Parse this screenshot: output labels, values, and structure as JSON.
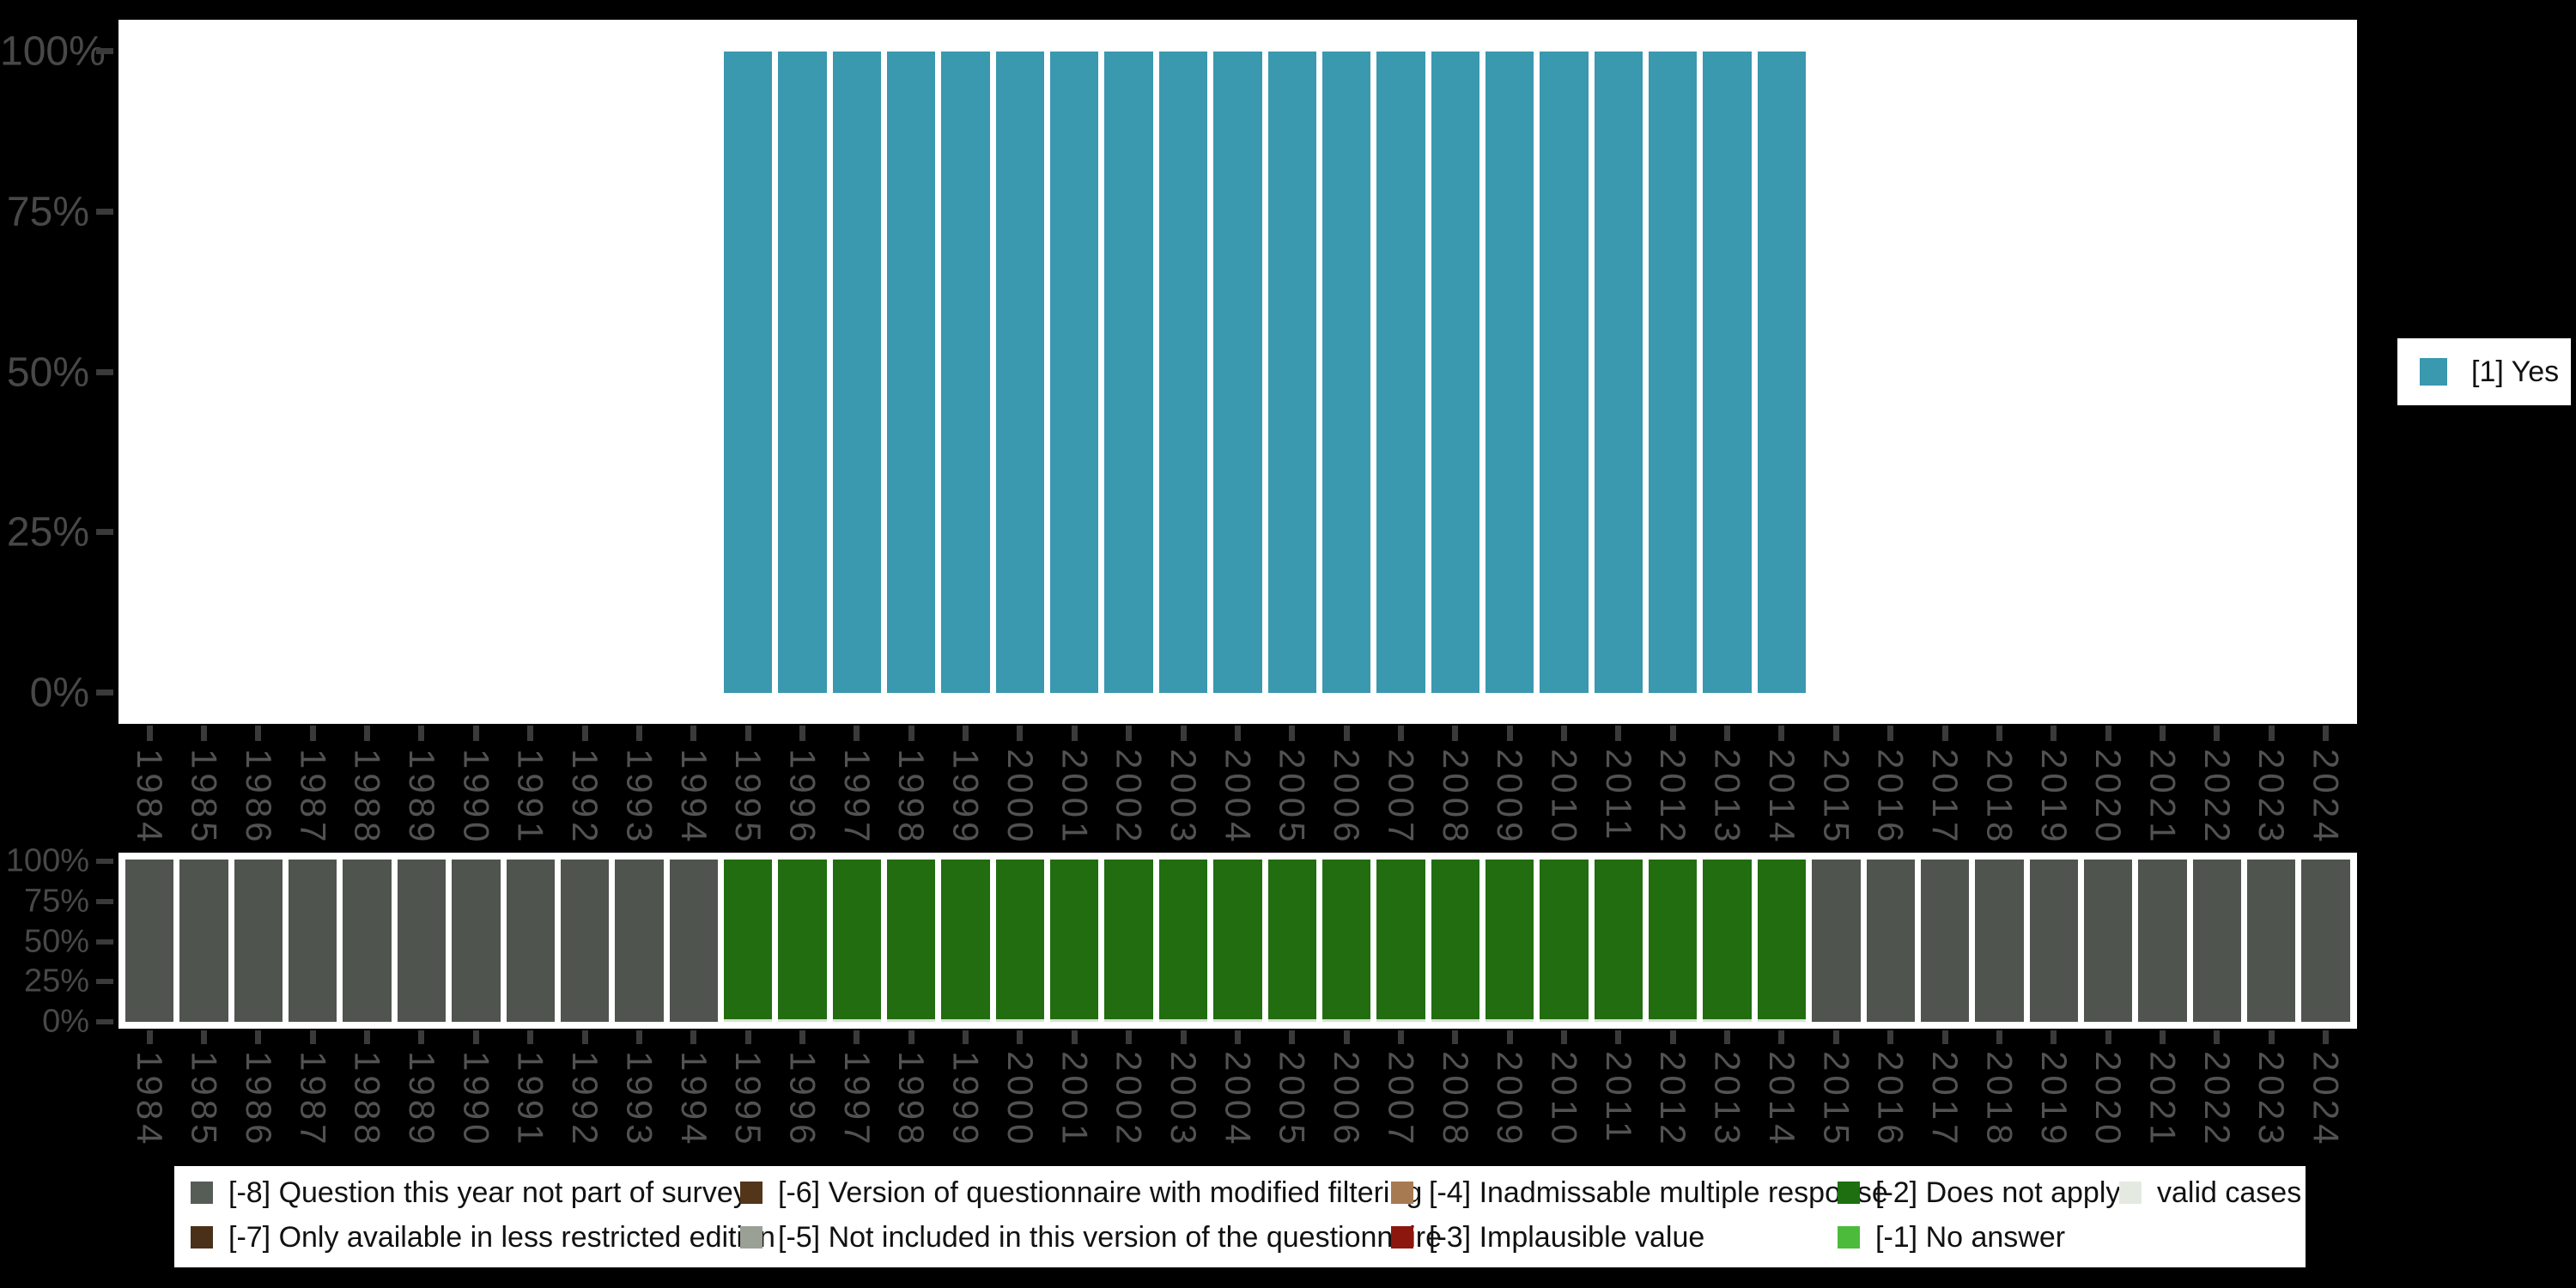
{
  "colors": {
    "background": "#000000",
    "panel": "#ffffff",
    "bar_yes": "#3a98af",
    "bar_not_surveyed": "#4f544e",
    "bar_does_not_apply": "#216d10",
    "valid_sliver": "#d7e2d1",
    "axis_text": "#4e4e4e",
    "tick": "#3a3a3a"
  },
  "top_chart": {
    "y_tick_labels": [
      "100%",
      "75%",
      "50%",
      "25%",
      "0%"
    ],
    "legend": {
      "label": "[1] Yes",
      "swatch_color": "#3a98af"
    }
  },
  "bottom_chart": {
    "y_tick_labels": [
      "100%",
      "75%",
      "50%",
      "25%",
      "0%"
    ]
  },
  "missing_legend": {
    "rows": [
      [
        {
          "label": "[-8] Question this year not part of survey",
          "color": "#565d56"
        },
        {
          "label": "[-6] Version of questionnaire with modified filtering",
          "color": "#53351a"
        },
        {
          "label": "[-4] Inadmissable multiple response",
          "color": "#a87a52"
        },
        {
          "label": "[-2] Does not apply",
          "color": "#1d6f10"
        },
        {
          "label": "valid cases",
          "color": "#e4eae1"
        }
      ],
      [
        {
          "label": "[-7] Only available in less restricted edition",
          "color": "#4a3018"
        },
        {
          "label": "[-5] Not included in this version of the questionnaire",
          "color": "#9aa096"
        },
        {
          "label": "[-3] Implausible value",
          "color": "#8c170e"
        },
        {
          "label": "[-1] No answer",
          "color": "#4cbb3c"
        }
      ]
    ]
  },
  "chart_data": [
    {
      "type": "bar",
      "title": "",
      "xlabel": "",
      "ylabel": "",
      "ylim": [
        0,
        100
      ],
      "y_tick_labels": [
        "0%",
        "25%",
        "50%",
        "75%",
        "100%"
      ],
      "grid": false,
      "legend_position": "right",
      "categories": [
        1984,
        1985,
        1986,
        1987,
        1988,
        1989,
        1990,
        1991,
        1992,
        1993,
        1994,
        1995,
        1996,
        1997,
        1998,
        1999,
        2000,
        2001,
        2002,
        2003,
        2004,
        2005,
        2006,
        2007,
        2008,
        2009,
        2010,
        2011,
        2012,
        2013,
        2014,
        2015,
        2016,
        2017,
        2018,
        2019,
        2020,
        2021,
        2022,
        2023,
        2024
      ],
      "series": [
        {
          "name": "[1] Yes",
          "color": "#3a98af",
          "values": [
            null,
            null,
            null,
            null,
            null,
            null,
            null,
            null,
            null,
            null,
            null,
            100,
            100,
            100,
            100,
            100,
            100,
            100,
            100,
            100,
            100,
            100,
            100,
            100,
            100,
            100,
            100,
            100,
            100,
            100,
            100,
            null,
            null,
            null,
            null,
            null,
            null,
            null,
            null,
            null,
            null
          ]
        }
      ]
    },
    {
      "type": "bar",
      "stacked": true,
      "title": "",
      "xlabel": "",
      "ylabel": "",
      "ylim": [
        0,
        100
      ],
      "y_tick_labels": [
        "0%",
        "25%",
        "50%",
        "75%",
        "100%"
      ],
      "grid": false,
      "legend_position": "bottom",
      "categories": [
        1984,
        1985,
        1986,
        1987,
        1988,
        1989,
        1990,
        1991,
        1992,
        1993,
        1994,
        1995,
        1996,
        1997,
        1998,
        1999,
        2000,
        2001,
        2002,
        2003,
        2004,
        2005,
        2006,
        2007,
        2008,
        2009,
        2010,
        2011,
        2012,
        2013,
        2014,
        2015,
        2016,
        2017,
        2018,
        2019,
        2020,
        2021,
        2022,
        2023,
        2024
      ],
      "series": [
        {
          "name": "[-8] Question this year not part of survey",
          "color": "#565d56",
          "values": [
            100,
            100,
            100,
            100,
            100,
            100,
            100,
            100,
            100,
            100,
            100,
            0,
            0,
            0,
            0,
            0,
            0,
            0,
            0,
            0,
            0,
            0,
            0,
            0,
            0,
            0,
            0,
            0,
            0,
            0,
            0,
            100,
            100,
            100,
            100,
            100,
            100,
            100,
            100,
            100,
            100
          ]
        },
        {
          "name": "[-2] Does not apply",
          "color": "#216d10",
          "values": [
            0,
            0,
            0,
            0,
            0,
            0,
            0,
            0,
            0,
            0,
            0,
            99,
            99,
            99,
            99,
            99,
            99,
            99,
            99,
            99,
            99,
            99,
            99,
            99,
            99,
            99,
            99,
            99,
            99,
            99,
            99,
            0,
            0,
            0,
            0,
            0,
            0,
            0,
            0,
            0,
            0
          ]
        },
        {
          "name": "valid cases",
          "color": "#e4eae1",
          "values": [
            0,
            0,
            0,
            0,
            0,
            0,
            0,
            0,
            0,
            0,
            0,
            1,
            1,
            1,
            1,
            1,
            1,
            1,
            1,
            1,
            1,
            1,
            1,
            1,
            1,
            1,
            1,
            1,
            1,
            1,
            1,
            0,
            0,
            0,
            0,
            0,
            0,
            0,
            0,
            0,
            0
          ]
        }
      ]
    }
  ]
}
